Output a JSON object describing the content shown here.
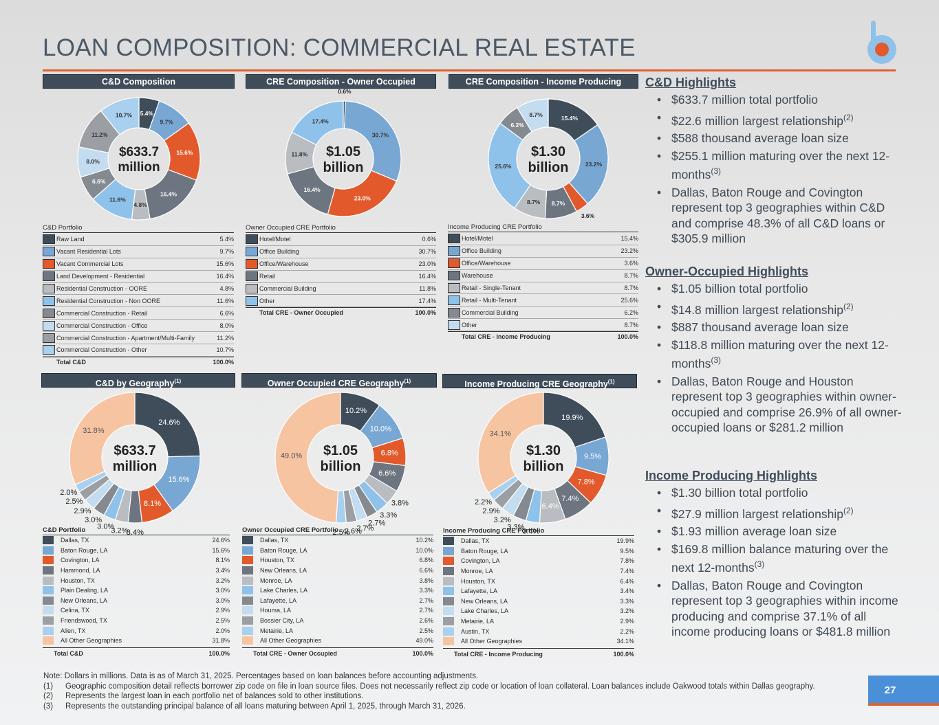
{
  "title": "LOAN COMPOSITION: COMMERCIAL REAL ESTATE",
  "colors": {
    "c1": "#3f4d5b",
    "c2": "#78a7d4",
    "c3": "#e25a2b",
    "c4": "#6d7580",
    "c5": "#b9bcc1",
    "c6": "#8fc2ea",
    "c7": "#858a91",
    "c8": "#c4dcef",
    "c9": "#9b9ea3",
    "c10": "#a9d0ef",
    "c11": "#f7c4a2"
  },
  "cd": {
    "header": "C&D Composition",
    "center": [
      "$633.7",
      "million"
    ],
    "table_caption": "C&D Portfolio",
    "items": [
      {
        "name": "Raw Land",
        "pct": "5.4%",
        "value": 5.4
      },
      {
        "name": "Vacant Residential Lots",
        "pct": "9.7%",
        "value": 9.7
      },
      {
        "name": "Vacant Commercial Lots",
        "pct": "15.6%",
        "value": 15.6
      },
      {
        "name": "Land Development - Residential",
        "pct": "16.4%",
        "value": 16.4
      },
      {
        "name": "Residential Construction - OORE",
        "pct": "4.8%",
        "value": 4.8
      },
      {
        "name": "Residential Construction - Non OORE",
        "pct": "11.6%",
        "value": 11.6
      },
      {
        "name": "Commercial Construction - Retail",
        "pct": "6.6%",
        "value": 6.6
      },
      {
        "name": "Commercial Construction - Office",
        "pct": "8.0%",
        "value": 8.0
      },
      {
        "name": "Commercial Construction - Apartment/Multi-Family",
        "pct": "11.2%",
        "value": 11.2
      },
      {
        "name": "Commercial Construction - Other",
        "pct": "10.7%",
        "value": 10.7
      }
    ],
    "total_label": "Total C&D",
    "total_pct": "100.0%"
  },
  "oo": {
    "header": "CRE Composition - Owner Occupied",
    "center": [
      "$1.05",
      "billion"
    ],
    "table_caption": "Owner Occupied CRE Portfolio",
    "items": [
      {
        "name": "Hotel/Motel",
        "pct": "0.6%",
        "value": 0.6
      },
      {
        "name": "Office Building",
        "pct": "30.7%",
        "value": 30.7
      },
      {
        "name": "Office/Warehouse",
        "pct": "23.0%",
        "value": 23.0
      },
      {
        "name": "Retail",
        "pct": "16.4%",
        "value": 16.4
      },
      {
        "name": "Commercial Building",
        "pct": "11.8%",
        "value": 11.8
      },
      {
        "name": "Other",
        "pct": "17.4%",
        "value": 17.4
      }
    ],
    "total_label": "Total CRE - Owner Occupied",
    "total_pct": "100.0%"
  },
  "ip": {
    "header": "CRE Composition - Income Producing",
    "center": [
      "$1.30",
      "billion"
    ],
    "table_caption": "Income Producing CRE Portfolio",
    "items": [
      {
        "name": "Hotel/Motel",
        "pct": "15.4%",
        "value": 15.4
      },
      {
        "name": "Office Building",
        "pct": "23.2%",
        "value": 23.2
      },
      {
        "name": "Office/Warehouse",
        "pct": "3.6%",
        "value": 3.6
      },
      {
        "name": "Warehouse",
        "pct": "8.7%",
        "value": 8.7
      },
      {
        "name": "Retail - Single-Tenant",
        "pct": "8.7%",
        "value": 8.7
      },
      {
        "name": "Retail - Multi-Tenant",
        "pct": "25.6%",
        "value": 25.6
      },
      {
        "name": "Commercial Building",
        "pct": "6.2%",
        "value": 6.2
      },
      {
        "name": "Other",
        "pct": "8.7%",
        "value": 8.7
      }
    ],
    "total_label": "Total CRE - Income Producing",
    "total_pct": "100.0%"
  },
  "cdgeo": {
    "header": "C&D by Geography",
    "sup": "(1)",
    "center": [
      "$633.7",
      "million"
    ],
    "table_caption": "C&D Portfolio",
    "items": [
      {
        "name": "Dallas, TX",
        "pct": "24.6%",
        "value": 24.6
      },
      {
        "name": "Baton Rouge, LA",
        "pct": "15.6%",
        "value": 15.6
      },
      {
        "name": "Covington, LA",
        "pct": "8.1%",
        "value": 8.1
      },
      {
        "name": "Hammond, LA",
        "pct": "3.4%",
        "value": 3.4
      },
      {
        "name": "Houston, TX",
        "pct": "3.2%",
        "value": 3.2
      },
      {
        "name": "Plain Dealing, LA",
        "pct": "3.0%",
        "value": 3.0
      },
      {
        "name": "New Orleans, LA",
        "pct": "3.0%",
        "value": 3.0
      },
      {
        "name": "Celina, TX",
        "pct": "2.9%",
        "value": 2.9
      },
      {
        "name": "Friendswood, TX",
        "pct": "2.5%",
        "value": 2.5
      },
      {
        "name": "Allen, TX",
        "pct": "2.0%",
        "value": 2.0
      },
      {
        "name": "All Other Geographies",
        "pct": "31.8%",
        "value": 31.8
      }
    ],
    "total_label": "Total C&D",
    "total_pct": "100.0%"
  },
  "oogeo": {
    "header": "Owner Occupied CRE Geography",
    "sup": "(1)",
    "center": [
      "$1.05",
      "billion"
    ],
    "table_caption": "Owner Occupied CRE Portfolio",
    "items": [
      {
        "name": "Dallas, TX",
        "pct": "10.2%",
        "value": 10.2
      },
      {
        "name": "Baton Rouge, LA",
        "pct": "10.0%",
        "value": 10.0
      },
      {
        "name": "Houston, TX",
        "pct": "6.8%",
        "value": 6.8
      },
      {
        "name": "New Orleans, LA",
        "pct": "6.6%",
        "value": 6.6
      },
      {
        "name": "Monroe, LA",
        "pct": "3.8%",
        "value": 3.8
      },
      {
        "name": "Lake Charles, LA",
        "pct": "3.3%",
        "value": 3.3
      },
      {
        "name": "Lafayette, LA",
        "pct": "2.7%",
        "value": 2.7
      },
      {
        "name": "Houma, LA",
        "pct": "2.7%",
        "value": 2.7
      },
      {
        "name": "Bossier City, LA",
        "pct": "2.6%",
        "value": 2.6
      },
      {
        "name": "Metairie, LA",
        "pct": "2.5%",
        "value": 2.5
      },
      {
        "name": "All Other Geographies",
        "pct": "49.0%",
        "value": 49.0
      }
    ],
    "total_label": "Total CRE - Owner Occupied",
    "total_pct": "100.0%"
  },
  "ipgeo": {
    "header": "Income Producing CRE Geography",
    "sup": "(1)",
    "center": [
      "$1.30",
      "billion"
    ],
    "table_caption": "Income Producing CRE Portfolio",
    "items": [
      {
        "name": "Dallas, TX",
        "pct": "19.9%",
        "value": 19.9
      },
      {
        "name": "Baton Rouge, LA",
        "pct": "9.5%",
        "value": 9.5
      },
      {
        "name": "Covington, LA",
        "pct": "7.8%",
        "value": 7.8
      },
      {
        "name": "Monroe, LA",
        "pct": "7.4%",
        "value": 7.4
      },
      {
        "name": "Houston, TX",
        "pct": "6.4%",
        "value": 6.4
      },
      {
        "name": "Lafayette, LA",
        "pct": "3.4%",
        "value": 3.4
      },
      {
        "name": "New Orleans, LA",
        "pct": "3.3%",
        "value": 3.3
      },
      {
        "name": "Lake Charles, LA",
        "pct": "3.2%",
        "value": 3.2
      },
      {
        "name": "Metairie, LA",
        "pct": "2.9%",
        "value": 2.9
      },
      {
        "name": "Austin, TX",
        "pct": "2.2%",
        "value": 2.2
      },
      {
        "name": "All Other Geographies",
        "pct": "34.1%",
        "value": 34.1
      }
    ],
    "total_label": "Total CRE - Income Producing",
    "total_pct": "100.0%"
  },
  "highlights": {
    "cd": {
      "title": "C&D Highlights",
      "b1": "$633.7 million total portfolio",
      "b2": "$22.6 million largest relationship",
      "b2sup": "(2)",
      "b3": "$588 thousand average loan size",
      "b4": "$255.1 million maturing over the next 12-months",
      "b4sup": "(3)",
      "b5": "Dallas, Baton Rouge and Covington represent top 3 geographies within C&D and comprise 48.3% of all C&D loans or $305.9 million"
    },
    "oo": {
      "title": "Owner-Occupied Highlights",
      "b1": "$1.05 billion total portfolio",
      "b2": "$14.8 million largest relationship",
      "b2sup": "(2)",
      "b3": "$887 thousand average loan size",
      "b4": "$118.8 million maturing over the next 12-months",
      "b4sup": "(3)",
      "b5": "Dallas, Baton Rouge and Houston represent top 3 geographies within owner-occupied and comprise 26.9% of all owner-occupied loans or $281.2 million"
    },
    "ip": {
      "title": "Income Producing Highlights",
      "b1": "$1.30 billion total portfolio",
      "b2": "$27.9 million largest relationship",
      "b2sup": "(2)",
      "b3": "$1.93 million average loan size",
      "b4": "$169.8 million balance maturing over the next 12-months",
      "b4sup": "(3)",
      "b5": "Dallas, Baton Rouge and Covington represent top 3 geographies within income producing and comprise 37.1% of all income producing loans or $481.8 million"
    }
  },
  "notes": {
    "main": "Note: Dollars in millions. Data is as of March 31, 2025. Percentages based on loan balances before accounting adjustments.",
    "f1n": "(1)",
    "f1": "Geographic composition detail reflects borrower zip code on file in loan source files. Does not necessarily reflect zip code or location of loan collateral. Loan balances include Oakwood totals within Dallas geography.",
    "f2n": "(2)",
    "f2": "Represents the largest loan in each portfolio net of balances sold to other institutions.",
    "f3n": "(3)",
    "f3": "Represents the outstanding principal balance of all loans maturing between April 1, 2025, through March 31, 2026."
  },
  "page_number": "27",
  "chart_data": [
    {
      "type": "pie",
      "title": "C&D Composition",
      "categories": [
        "Raw Land",
        "Vacant Residential Lots",
        "Vacant Commercial Lots",
        "Land Development - Residential",
        "Residential Construction - OORE",
        "Residential Construction - Non OORE",
        "Commercial Construction - Retail",
        "Commercial Construction - Office",
        "Commercial Construction - Apartment/Multi-Family",
        "Commercial Construction - Other"
      ],
      "values": [
        5.4,
        9.7,
        15.6,
        16.4,
        4.8,
        11.6,
        6.6,
        8.0,
        11.2,
        10.7
      ]
    },
    {
      "type": "pie",
      "title": "CRE Composition - Owner Occupied",
      "categories": [
        "Hotel/Motel",
        "Office Building",
        "Office/Warehouse",
        "Retail",
        "Commercial Building",
        "Other"
      ],
      "values": [
        0.6,
        30.7,
        23.0,
        16.4,
        11.8,
        17.4
      ]
    },
    {
      "type": "pie",
      "title": "CRE Composition - Income Producing",
      "categories": [
        "Hotel/Motel",
        "Office Building",
        "Office/Warehouse",
        "Warehouse",
        "Retail - Single-Tenant",
        "Retail - Multi-Tenant",
        "Commercial Building",
        "Other"
      ],
      "values": [
        15.4,
        23.2,
        3.6,
        8.7,
        8.7,
        25.6,
        6.2,
        8.7
      ]
    },
    {
      "type": "pie",
      "title": "C&D by Geography",
      "categories": [
        "Dallas, TX",
        "Baton Rouge, LA",
        "Covington, LA",
        "Hammond, LA",
        "Houston, TX",
        "Plain Dealing, LA",
        "New Orleans, LA",
        "Celina, TX",
        "Friendswood, TX",
        "Allen, TX",
        "All Other Geographies"
      ],
      "values": [
        24.6,
        15.6,
        8.1,
        3.4,
        3.2,
        3.0,
        3.0,
        2.9,
        2.5,
        2.0,
        31.8
      ]
    },
    {
      "type": "pie",
      "title": "Owner Occupied CRE Geography",
      "categories": [
        "Dallas, TX",
        "Baton Rouge, LA",
        "Houston, TX",
        "New Orleans, LA",
        "Monroe, LA",
        "Lake Charles, LA",
        "Lafayette, LA",
        "Houma, LA",
        "Bossier City, LA",
        "Metairie, LA",
        "All Other Geographies"
      ],
      "values": [
        10.2,
        10.0,
        6.8,
        6.6,
        3.8,
        3.3,
        2.7,
        2.7,
        2.6,
        2.5,
        49.0
      ]
    },
    {
      "type": "pie",
      "title": "Income Producing CRE Geography",
      "categories": [
        "Dallas, TX",
        "Baton Rouge, LA",
        "Covington, LA",
        "Monroe, LA",
        "Houston, TX",
        "Lafayette, LA",
        "New Orleans, LA",
        "Lake Charles, LA",
        "Metairie, LA",
        "Austin, TX",
        "All Other Geographies"
      ],
      "values": [
        19.9,
        9.5,
        7.8,
        7.4,
        6.4,
        3.4,
        3.3,
        3.2,
        2.9,
        2.2,
        34.1
      ]
    }
  ]
}
